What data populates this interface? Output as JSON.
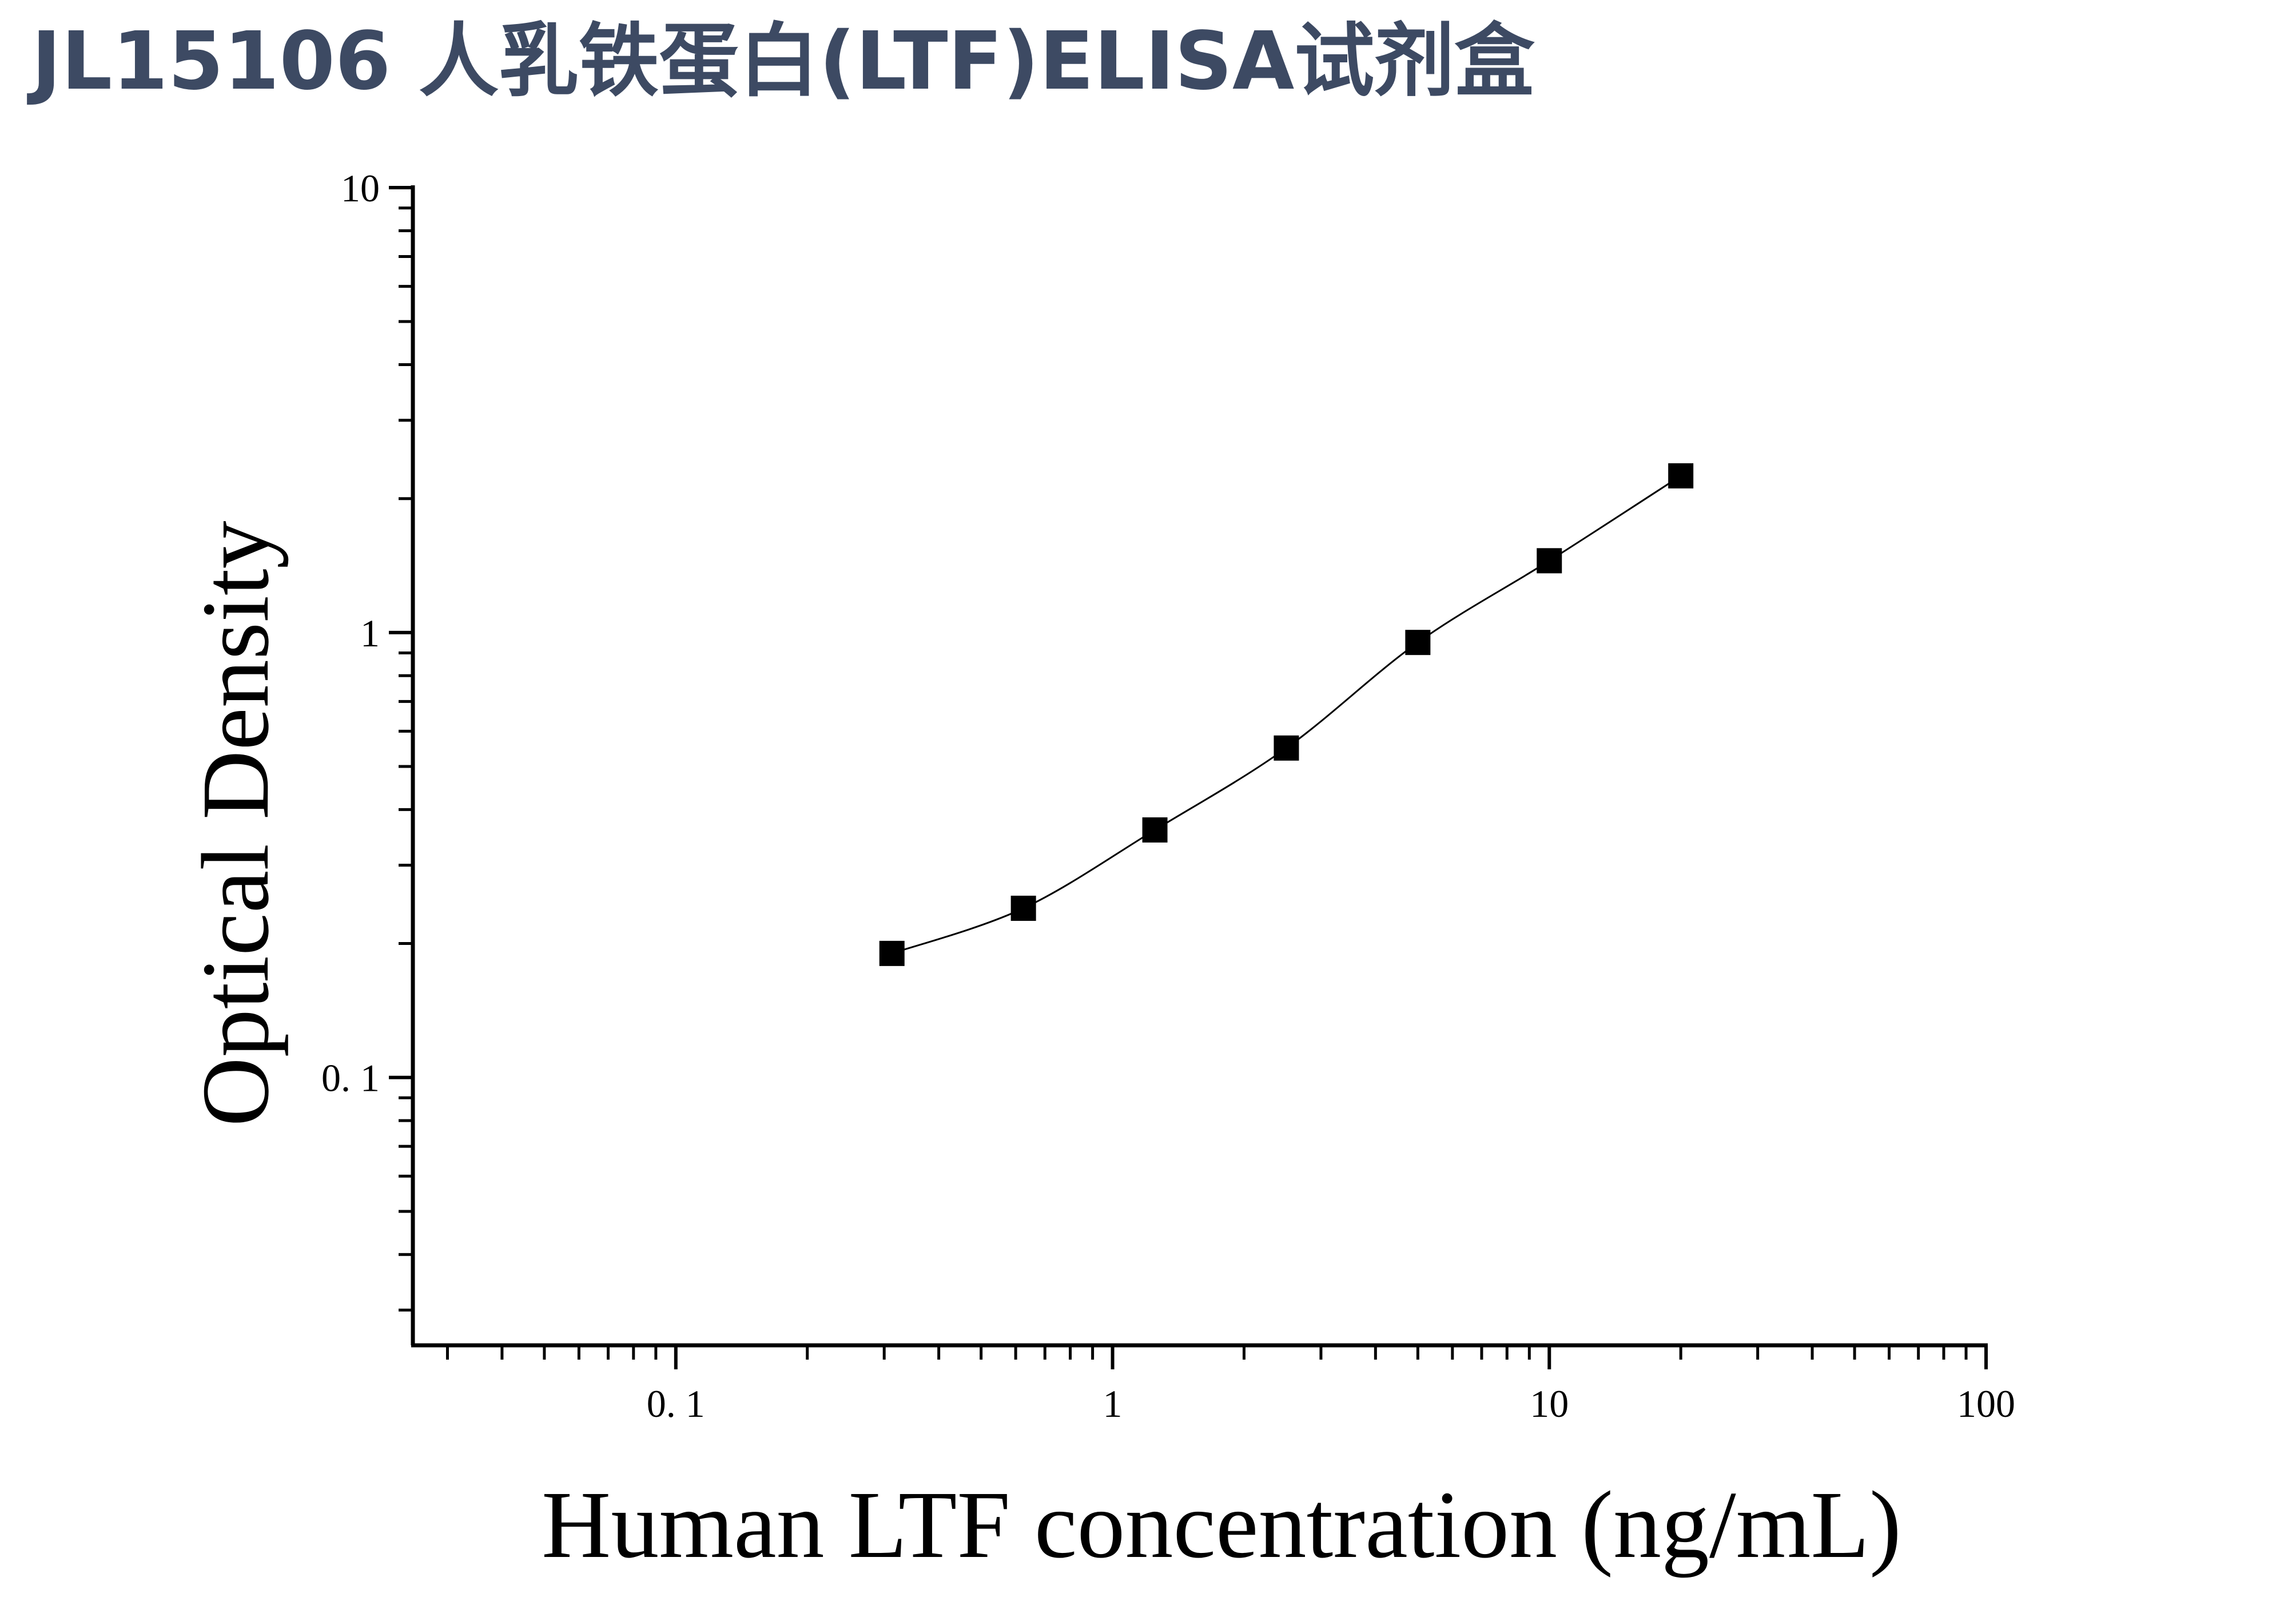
{
  "header": {
    "title": "JL15106 人乳铁蛋白(LTF)ELISA试剂盒"
  },
  "chart_data": {
    "type": "scatter",
    "title": "JL15106 人乳铁蛋白(LTF)ELISA试剂盒",
    "xlabel": "Human LTF concentration (ng/mL)",
    "ylabel": "Optical Density",
    "xscale": "log",
    "yscale": "log",
    "xlim": [
      0.025,
      100
    ],
    "ylim": [
      0.025,
      10
    ],
    "x_ticks": [
      {
        "value": 0.1,
        "label": "0. 1"
      },
      {
        "value": 1,
        "label": "1"
      },
      {
        "value": 10,
        "label": "10"
      },
      {
        "value": 100,
        "label": "100"
      }
    ],
    "y_ticks": [
      {
        "value": 0.1,
        "label": "0. 1"
      },
      {
        "value": 1,
        "label": "1"
      },
      {
        "value": 10,
        "label": "10"
      }
    ],
    "grid": false,
    "legend": "none",
    "series": [
      {
        "marker": "square",
        "fit_line": true,
        "x": [
          0.3125,
          0.625,
          1.25,
          2.5,
          5,
          10,
          20
        ],
        "y": [
          0.19,
          0.24,
          0.36,
          0.55,
          0.95,
          1.45,
          2.25
        ]
      }
    ],
    "colors": {
      "axis": "#000000",
      "marker": "#000000",
      "line": "#000000"
    }
  }
}
